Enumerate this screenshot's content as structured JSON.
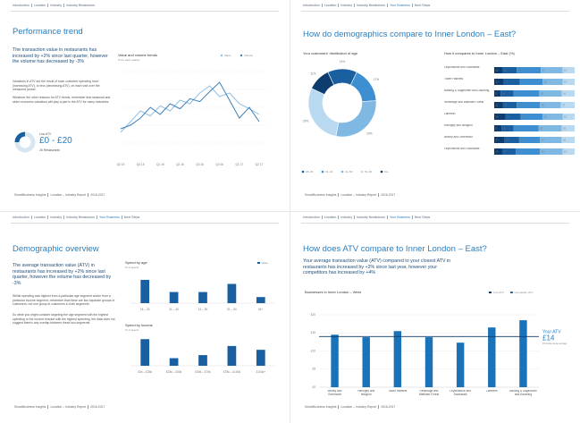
{
  "pages": [
    {
      "breadcrumb": [
        "Introduction",
        "Location",
        "Industry",
        "Industry Breakdown"
      ],
      "title": "Performance trend",
      "lead": "The transaction value in restaurants has increased by +2% since last quarter, however the volume has decreased by -3%",
      "paragraphs": [
        "Variations in ATV are the result of each customer spending more (increasing ATV), or less (decreasing ATV), on each visit over the measured period.",
        "Whatever the other reasons for ATV trends, remember that seasonal and wider economic variations will play a part in the ATV for many industries."
      ],
      "atv_card": {
        "label": "Low ATV",
        "value": "£0 - £20",
        "note": "26 Restaurants"
      },
      "footer": [
        "SmartBusiness Insights",
        "Location – Industry Report",
        "2016-2017"
      ]
    },
    {
      "breadcrumb": [
        "Introduction",
        "Location",
        "Industry",
        "Industry Breakdown",
        "Your Business",
        "Next Steps"
      ],
      "current_index": 4,
      "title": "How do demographics compare to Inner London – East?",
      "footer": [
        "SmartBusiness Insights",
        "Location – Industry Report",
        "2016-2017"
      ]
    },
    {
      "breadcrumb": [
        "Introduction",
        "Location",
        "Industry",
        "Industry Breakdown",
        "Your Business",
        "Next Steps"
      ],
      "current_index": 4,
      "title": "Demographic overview",
      "lead": "The average transaction value (ATV) in restaurants has increased by +2% since last quarter, however the volume has decreased by -3%",
      "paragraphs": [
        "Whilst spending was highest from a particular age segment and/or from a particular income segment, remember that these are two separate groups of customers, not one group of customers in both segments.",
        "So while you might consider targeting the age segment with the highest spending or the income bracket with the highest spending, the data does not suggest there's any overlap between these two segments."
      ],
      "footer": [
        "SmartBusiness Insights",
        "Location – Industry Report",
        "2016-2017"
      ]
    },
    {
      "breadcrumb": [
        "Introduction",
        "Location",
        "Industry",
        "Industry Breakdown",
        "Your Business",
        "Next Steps"
      ],
      "current_index": 4,
      "title": "How does ATV compare to Inner London – East?",
      "lead": "Your average transaction value (ATV) compared to your closest ATV in restaurants has increased by +2% since last year, however your competitors has increased by +4%",
      "footer": [
        "SmartBusiness Insights",
        "Location – Industry Report",
        "2016-2017"
      ]
    }
  ],
  "chart_data": [
    {
      "type": "line",
      "title": "Value and volume trends",
      "subtitle": "% for each quarter",
      "categories": [
        "Q3 15",
        null,
        "Q4 15",
        null,
        "Q1 16",
        null,
        "Q2 16",
        null,
        "Q3 16",
        null,
        "Q4 16",
        null,
        "Q1 17",
        null,
        "Q2 17"
      ],
      "ylim": [
        0,
        100
      ],
      "yticks": [
        0,
        25,
        50,
        75,
        100
      ],
      "grid": true,
      "series": [
        {
          "name": "Value",
          "color": "#8fc1e3",
          "values": [
            15,
            30,
            45,
            38,
            52,
            45,
            60,
            55,
            70,
            80,
            65,
            70,
            55,
            48,
            40
          ]
        },
        {
          "name": "Volume",
          "color": "#3d7fb5",
          "values": [
            20,
            25,
            35,
            50,
            40,
            55,
            48,
            62,
            58,
            72,
            85,
            60,
            35,
            50,
            30
          ]
        }
      ]
    },
    {
      "type": "pie",
      "donut": true,
      "title": "Your customers' distribution of age",
      "categories": [
        "18–30",
        "31–40",
        "41–50",
        "51–60",
        "61+"
      ],
      "values": [
        14,
        17,
        29,
        29,
        11
      ],
      "value_labels": [
        "14%",
        "17%",
        "29%",
        "29%",
        "11%"
      ],
      "colors": [
        "#1a5fa0",
        "#3d8fd1",
        "#7fb8e3",
        "#b9d9f0",
        "#0d3d6e"
      ]
    },
    {
      "type": "bar",
      "orientation": "horizontal",
      "stacked": true,
      "title": "How it compares to Inner London – East (%)",
      "categories": [
        "Leytonstone and Southwark",
        "Tower Hamlets",
        "Barking & Dagenham and Dauering",
        "Redbridge and Waltham Forest",
        "Lambeth",
        "Haringey and Islington",
        "Bexley and Greenwich",
        "Leytonstone and Southwark"
      ],
      "xlim": [
        0,
        100
      ],
      "series": [
        {
          "color": "#0d3d6e",
          "values": [
            10,
            12,
            8,
            11,
            14,
            9,
            13,
            10
          ]
        },
        {
          "color": "#1a5fa0",
          "values": [
            18,
            20,
            16,
            17,
            19,
            15,
            18,
            17
          ]
        },
        {
          "color": "#3d8fd1",
          "values": [
            30,
            28,
            32,
            29,
            27,
            31,
            26,
            30
          ]
        },
        {
          "color": "#7fb8e3",
          "values": [
            27,
            25,
            28,
            26,
            25,
            29,
            27,
            28
          ]
        },
        {
          "color": "#b9d9f0",
          "values": [
            15,
            15,
            16,
            17,
            15,
            16,
            16,
            15
          ]
        }
      ]
    },
    {
      "type": "bar",
      "title": "Spend by age",
      "subtitle": "% of spend",
      "categories": [
        "18 – 30",
        "31 – 40",
        "41 – 50",
        "51 – 60",
        "61+"
      ],
      "ylim": [
        0,
        30
      ],
      "series": [
        {
          "name": "Value",
          "color": "#1a5fa0",
          "values": [
            23,
            11,
            11,
            19,
            6
          ]
        }
      ]
    },
    {
      "type": "bar",
      "title": "Spend by income",
      "subtitle": "% of spend",
      "categories": [
        "£0k – £25k",
        "£25k – £50k",
        "£50k – £75k",
        "£75k – £100k",
        "£100k+"
      ],
      "ylim": [
        0,
        40
      ],
      "color": "#1a5fa0",
      "values": [
        35,
        10,
        14,
        26,
        21
      ]
    },
    {
      "type": "bar",
      "title": "Businesses in Inner London – West",
      "categories": [
        "Bexley and Greenwich",
        "Haringey and Islington",
        "Tower Hamlets",
        "Redbridge and Waltham Forest",
        "Leytonstone and Southwark",
        "Lambeth",
        "Barking & Dagenham and Dauering"
      ],
      "ylim": [
        0,
        20
      ],
      "yticks": [
        {
          "value": 0,
          "label": "£0"
        },
        {
          "value": 5,
          "label": "£5"
        },
        {
          "value": 10,
          "label": "£10"
        },
        {
          "value": 15,
          "label": "£15"
        },
        {
          "value": 20,
          "label": "£20"
        }
      ],
      "series": [
        {
          "name": "Competitor ATV",
          "color": "#1a72b8",
          "values": [
            14.5,
            13.8,
            15.5,
            13.8,
            12.3,
            16.5,
            18.5
          ]
        }
      ],
      "reference_line": {
        "name": "Your ATV",
        "value": 14,
        "value_label": "£14",
        "note": "6% below area average",
        "color": "#0d3d6e"
      }
    }
  ]
}
